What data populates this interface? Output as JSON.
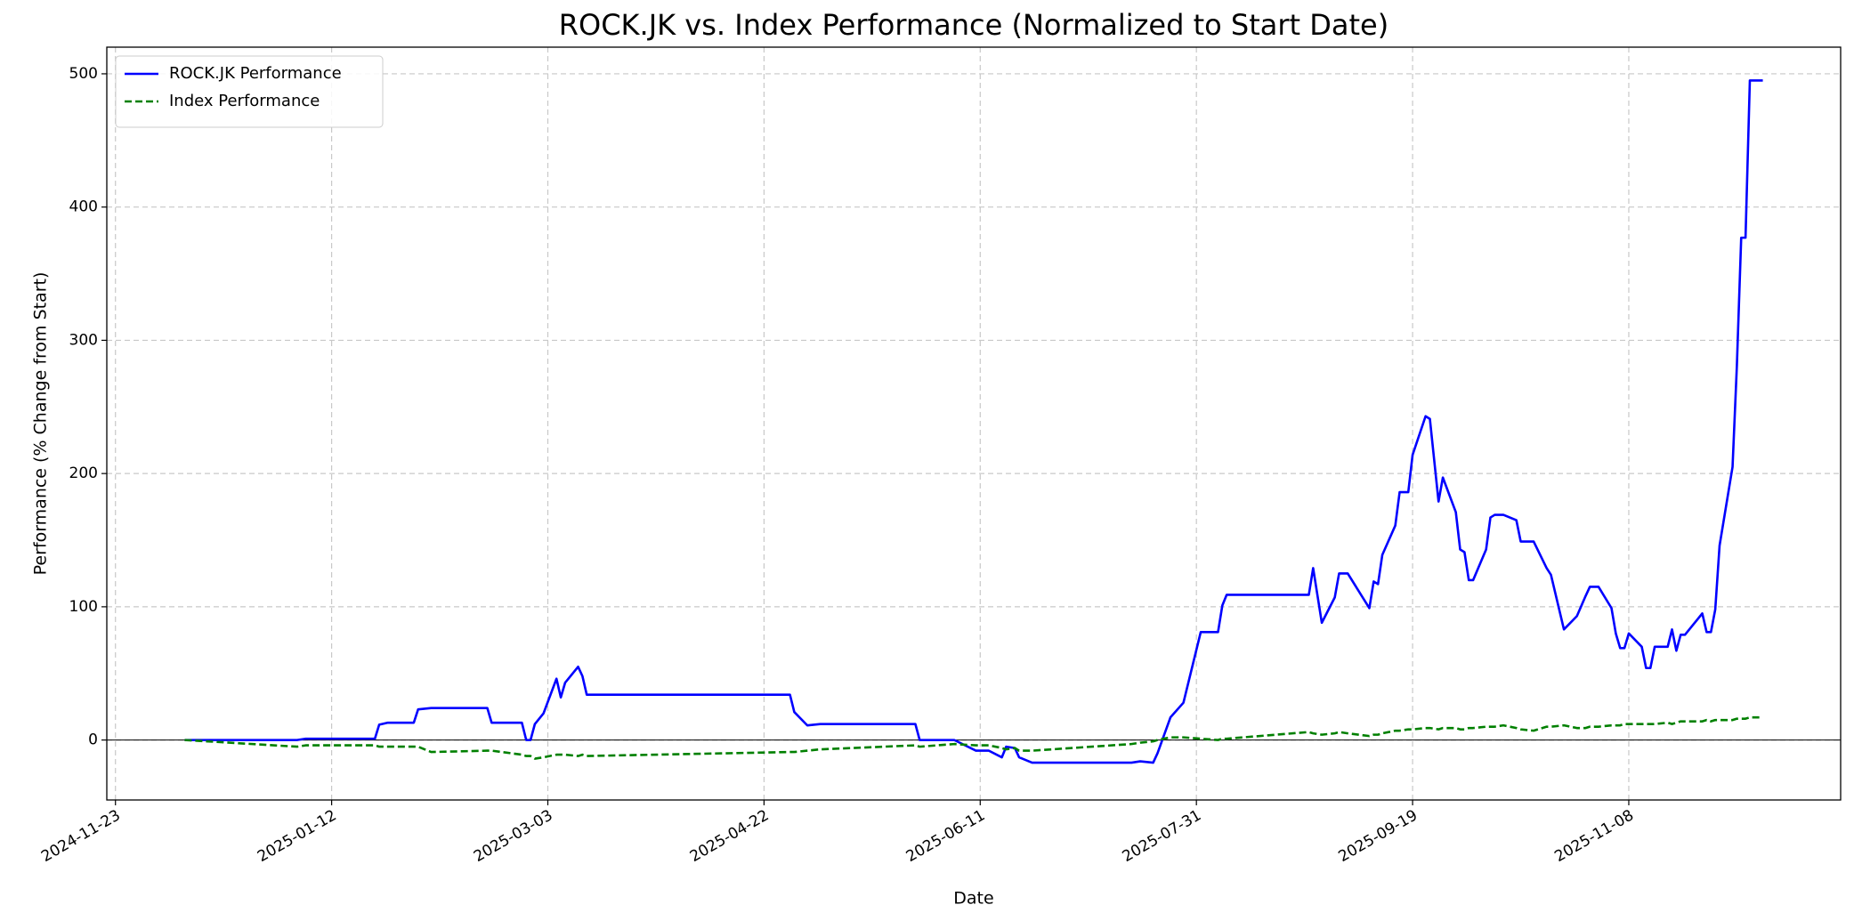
{
  "chart_data": {
    "type": "line",
    "title": "ROCK.JK vs. Index Performance (Normalized to Start Date)",
    "x_label": "Date",
    "y_label": "Performance (% Change from Start)",
    "x": [
      "2024-12-09",
      "2025-01-04",
      "2025-01-06",
      "2025-01-22",
      "2025-01-23",
      "2025-01-25",
      "2025-01-31",
      "2025-02-01",
      "2025-02-04",
      "2025-02-17",
      "2025-02-18",
      "2025-02-25",
      "2025-02-26",
      "2025-02-27",
      "2025-02-28",
      "2025-03-02",
      "2025-03-05",
      "2025-03-06",
      "2025-03-07",
      "2025-03-10",
      "2025-03-11",
      "2025-03-12",
      "2025-04-28",
      "2025-04-29",
      "2025-05-02",
      "2025-05-05",
      "2025-05-27",
      "2025-05-28",
      "2025-06-05",
      "2025-06-10",
      "2025-06-13",
      "2025-06-16",
      "2025-06-17",
      "2025-06-19",
      "2025-06-20",
      "2025-06-23",
      "2025-07-16",
      "2025-07-18",
      "2025-07-21",
      "2025-07-22",
      "2025-07-25",
      "2025-07-28",
      "2025-08-01",
      "2025-08-05",
      "2025-08-06",
      "2025-08-07",
      "2025-08-26",
      "2025-08-27",
      "2025-08-29",
      "2025-09-01",
      "2025-09-02",
      "2025-09-04",
      "2025-09-09",
      "2025-09-10",
      "2025-09-11",
      "2025-09-12",
      "2025-09-15",
      "2025-09-16",
      "2025-09-18",
      "2025-09-19",
      "2025-09-22",
      "2025-09-23",
      "2025-09-25",
      "2025-09-26",
      "2025-09-29",
      "2025-09-30",
      "2025-10-01",
      "2025-10-02",
      "2025-10-03",
      "2025-10-06",
      "2025-10-07",
      "2025-10-08",
      "2025-10-10",
      "2025-10-13",
      "2025-10-14",
      "2025-10-17",
      "2025-10-20",
      "2025-10-21",
      "2025-10-24",
      "2025-10-27",
      "2025-10-29",
      "2025-10-30",
      "2025-11-01",
      "2025-11-04",
      "2025-11-05",
      "2025-11-06",
      "2025-11-07",
      "2025-11-08",
      "2025-11-11",
      "2025-11-12",
      "2025-11-13",
      "2025-11-14",
      "2025-11-17",
      "2025-11-18",
      "2025-11-19",
      "2025-11-20",
      "2025-11-21",
      "2025-11-25",
      "2025-11-26",
      "2025-11-27",
      "2025-11-28",
      "2025-11-29",
      "2025-12-02",
      "2025-12-03",
      "2025-12-04",
      "2025-12-05",
      "2025-12-06",
      "2025-12-09"
    ],
    "series": [
      {
        "name": "ROCK.JK Performance",
        "color": "#0000ff",
        "dash": false,
        "values": [
          0,
          0,
          1,
          1,
          11.5,
          13,
          13,
          23,
          24,
          24,
          13,
          13,
          0,
          0,
          12,
          20,
          46,
          32,
          43,
          55,
          48,
          34,
          34,
          21,
          11,
          12,
          12,
          0,
          0,
          -8,
          -8,
          -13,
          -5,
          -6,
          -13,
          -17,
          -17,
          -16,
          -17,
          -10,
          17,
          28,
          81,
          81,
          101,
          109,
          109,
          129,
          88,
          107,
          125,
          125,
          99,
          119,
          117,
          139,
          161,
          186,
          186,
          214,
          243,
          241,
          179,
          197,
          171,
          143,
          141,
          120,
          120,
          143,
          167,
          169,
          169,
          165,
          149,
          149,
          129,
          124,
          83,
          93,
          108,
          115,
          115,
          99,
          80,
          69,
          69,
          80,
          70,
          54,
          54,
          70,
          70,
          83,
          67,
          79,
          79,
          95,
          81,
          81,
          98,
          146,
          205,
          281,
          377,
          377,
          495,
          495
        ]
      },
      {
        "name": "Index Performance",
        "color": "#008000",
        "dash": true,
        "values": [
          0,
          -5,
          -4,
          -4,
          -5,
          -5,
          -5,
          -5,
          -9,
          -8,
          -8,
          -11,
          -12,
          -12,
          -14,
          -13,
          -11,
          -11,
          -11,
          -12,
          -11,
          -12,
          -9,
          -9,
          -8,
          -7,
          -4,
          -5,
          -3,
          -4,
          -4,
          -6,
          -7,
          -6,
          -8,
          -8,
          -3,
          -2,
          -1,
          0,
          2,
          2,
          1,
          0,
          1,
          1,
          6,
          5,
          4,
          5,
          6,
          5,
          3,
          4,
          4,
          5,
          7,
          7,
          8,
          8,
          9,
          9,
          8,
          9,
          9,
          8,
          8,
          9,
          9,
          10,
          10,
          10,
          11,
          9,
          8,
          7,
          10,
          10,
          11,
          9,
          9,
          10,
          10,
          11,
          11,
          11,
          12,
          12,
          12,
          12,
          12,
          12,
          13,
          12,
          13,
          14,
          14,
          14,
          15,
          14,
          15,
          15,
          15,
          16,
          16,
          16,
          17,
          17
        ]
      }
    ],
    "hline": 0,
    "xlim": [
      "2024-11-21",
      "2025-12-27"
    ],
    "xticks": [
      "2024-11-23",
      "2025-01-12",
      "2025-03-03",
      "2025-04-22",
      "2025-06-11",
      "2025-07-31",
      "2025-09-19",
      "2025-11-08"
    ],
    "ylim": [
      -45,
      520
    ],
    "yticks": [
      0,
      100,
      200,
      300,
      400,
      500
    ],
    "grid": true,
    "legend": "upper left"
  }
}
